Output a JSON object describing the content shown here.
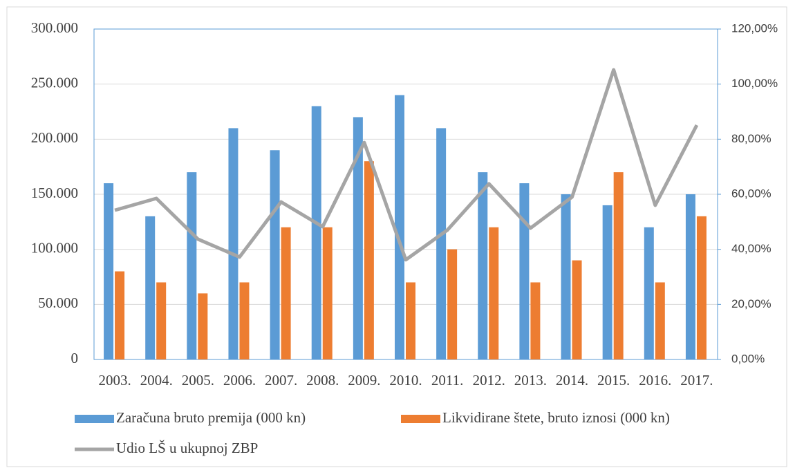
{
  "chart_data": {
    "type": "bar",
    "categories": [
      "2003.",
      "2004.",
      "2005.",
      "2006.",
      "2007.",
      "2008.",
      "2009.",
      "2010.",
      "2011.",
      "2012.",
      "2013.",
      "2014.",
      "2015.",
      "2016.",
      "2017."
    ],
    "series": [
      {
        "name": "Zaračuna bruto premija (000 kn)",
        "color": "#5b9bd5",
        "values": [
          160000,
          130000,
          170000,
          210000,
          190000,
          230000,
          220000,
          240000,
          210000,
          170000,
          160000,
          150000,
          140000,
          120000,
          150000
        ]
      },
      {
        "name": "Likvidirane štete, bruto iznosi (000 kn)",
        "color": "#ed7d31",
        "values": [
          80000,
          70000,
          60000,
          70000,
          120000,
          120000,
          180000,
          70000,
          100000,
          120000,
          70000,
          90000,
          170000,
          70000,
          130000
        ]
      },
      {
        "name": "Udio LŠ u ukupnoj ZBP",
        "color": "#a5a5a5",
        "type": "line",
        "axis": "y2",
        "values": [
          54.2,
          58.5,
          43.7,
          37.2,
          57.2,
          48.2,
          78.8,
          36.2,
          47,
          63.8,
          47.7,
          59,
          105.2,
          56,
          85.1
        ]
      }
    ],
    "ylim": [
      0,
      300000
    ],
    "yticks": [
      0,
      {
        "value": 50000,
        "label": "50.000"
      },
      {
        "value": 100000,
        "label": "100.000"
      },
      {
        "value": 150000,
        "label": "150.000"
      },
      {
        "value": 200000,
        "label": "200.000"
      },
      {
        "value": 250000,
        "label": "250.000"
      },
      {
        "value": 300000,
        "label": "300.000"
      }
    ],
    "y2lim": [
      0,
      120
    ],
    "y2ticks": [
      {
        "value": 0,
        "label": "0,00%"
      },
      {
        "value": 20,
        "label": "20,00%"
      },
      {
        "value": 40,
        "label": "40,00%"
      },
      {
        "value": 60,
        "label": "60,00%"
      },
      {
        "value": 80,
        "label": "80,00%"
      },
      {
        "value": 100,
        "label": "100,00%"
      },
      {
        "value": 120,
        "label": "120,00%"
      }
    ],
    "grid": true,
    "legend": "bottom"
  }
}
